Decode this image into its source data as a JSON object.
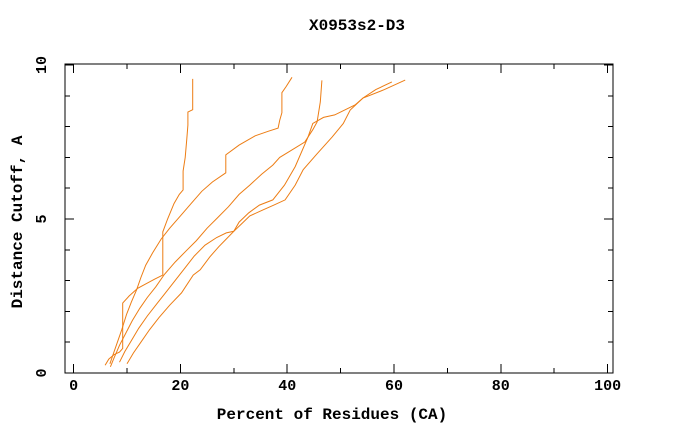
{
  "figure": {
    "background": "#ffffff",
    "axis_color": "#000000"
  },
  "chart_data": {
    "type": "line",
    "title": "X0953s2-D3",
    "xlabel": "Percent of Residues (CA)",
    "ylabel": "Distance Cutoff, A",
    "xlim": [
      0,
      100
    ],
    "ylim": [
      0,
      10
    ],
    "grid": false,
    "legend_position": "none",
    "line_color": "#ED7D14",
    "x_major_ticks": [
      0,
      20,
      40,
      60,
      80,
      100
    ],
    "x_minor_ticks": [
      10,
      30,
      50,
      70,
      90
    ],
    "y_major_ticks": [
      0,
      5,
      10
    ],
    "y_minor_ticks": [
      1,
      2,
      3,
      4,
      6,
      7,
      8,
      9
    ],
    "x_tick_labels": [
      "0",
      "20",
      "40",
      "60",
      "80",
      "100"
    ],
    "y_tick_labels": [
      "0",
      "5",
      "10"
    ],
    "series": [
      {
        "id": "curve-1",
        "points": [
          [
            5.9,
            0.25
          ],
          [
            6.6,
            0.45
          ],
          [
            7.6,
            0.6
          ],
          [
            8.6,
            0.68
          ],
          [
            9.2,
            0.8
          ],
          [
            9.2,
            2.27
          ],
          [
            10.4,
            2.5
          ],
          [
            12.0,
            2.75
          ],
          [
            13.6,
            2.9
          ],
          [
            15.2,
            3.05
          ],
          [
            16.7,
            3.18
          ],
          [
            16.7,
            4.58
          ],
          [
            17.6,
            5.0
          ],
          [
            18.8,
            5.5
          ],
          [
            19.8,
            5.8
          ],
          [
            20.5,
            5.94
          ],
          [
            20.5,
            6.56
          ],
          [
            20.9,
            7.0
          ],
          [
            21.2,
            7.6
          ],
          [
            21.4,
            8.05
          ],
          [
            21.4,
            8.47
          ],
          [
            22.3,
            8.55
          ],
          [
            22.3,
            9.55
          ]
        ]
      },
      {
        "id": "curve-2",
        "points": [
          [
            6.8,
            0.3
          ],
          [
            7.4,
            0.6
          ],
          [
            8.2,
            1.0
          ],
          [
            9.0,
            1.4
          ],
          [
            9.9,
            1.9
          ],
          [
            10.8,
            2.3
          ],
          [
            11.8,
            2.7
          ],
          [
            12.6,
            3.1
          ],
          [
            13.5,
            3.5
          ],
          [
            14.8,
            3.9
          ],
          [
            16.4,
            4.35
          ],
          [
            18.0,
            4.7
          ],
          [
            20.0,
            5.1
          ],
          [
            22.0,
            5.5
          ],
          [
            24.0,
            5.9
          ],
          [
            26.0,
            6.2
          ],
          [
            28.5,
            6.5
          ],
          [
            28.5,
            7.08
          ],
          [
            31.0,
            7.4
          ],
          [
            34.0,
            7.7
          ],
          [
            36.5,
            7.85
          ],
          [
            38.3,
            7.95
          ],
          [
            38.6,
            8.2
          ],
          [
            39.0,
            8.45
          ],
          [
            39.0,
            9.1
          ],
          [
            39.8,
            9.3
          ],
          [
            40.9,
            9.6
          ]
        ]
      },
      {
        "id": "curve-3",
        "points": [
          [
            6.9,
            0.2
          ],
          [
            7.6,
            0.5
          ],
          [
            8.6,
            0.9
          ],
          [
            9.8,
            1.3
          ],
          [
            11.0,
            1.7
          ],
          [
            12.4,
            2.1
          ],
          [
            13.8,
            2.45
          ],
          [
            15.4,
            2.8
          ],
          [
            17.0,
            3.2
          ],
          [
            19.0,
            3.6
          ],
          [
            21.0,
            3.95
          ],
          [
            23.0,
            4.3
          ],
          [
            25.0,
            4.7
          ],
          [
            27.0,
            5.05
          ],
          [
            29.0,
            5.4
          ],
          [
            31.0,
            5.8
          ],
          [
            33.0,
            6.1
          ],
          [
            35.2,
            6.45
          ],
          [
            37.3,
            6.75
          ],
          [
            38.6,
            7.0
          ],
          [
            40.5,
            7.2
          ],
          [
            43.3,
            7.5
          ],
          [
            44.8,
            7.9
          ],
          [
            45.6,
            8.15
          ],
          [
            46.2,
            8.8
          ],
          [
            46.5,
            9.5
          ]
        ]
      },
      {
        "id": "curve-4",
        "points": [
          [
            8.6,
            0.35
          ],
          [
            9.6,
            0.7
          ],
          [
            10.8,
            1.05
          ],
          [
            12.2,
            1.45
          ],
          [
            13.8,
            1.85
          ],
          [
            15.6,
            2.25
          ],
          [
            17.2,
            2.6
          ],
          [
            19.0,
            3.0
          ],
          [
            20.8,
            3.4
          ],
          [
            22.6,
            3.8
          ],
          [
            24.6,
            4.15
          ],
          [
            26.8,
            4.4
          ],
          [
            28.6,
            4.55
          ],
          [
            30.0,
            4.6
          ],
          [
            31.5,
            4.85
          ],
          [
            33.0,
            5.1
          ],
          [
            35.5,
            5.3
          ],
          [
            37.5,
            5.45
          ],
          [
            39.6,
            5.62
          ],
          [
            41.5,
            6.1
          ],
          [
            43.0,
            6.6
          ],
          [
            45.5,
            7.1
          ],
          [
            48.4,
            7.66
          ],
          [
            50.5,
            8.1
          ],
          [
            51.8,
            8.54
          ],
          [
            54.2,
            8.93
          ],
          [
            56.6,
            9.2
          ],
          [
            59.6,
            9.45
          ]
        ]
      },
      {
        "id": "curve-5",
        "points": [
          [
            10.0,
            0.3
          ],
          [
            11.2,
            0.65
          ],
          [
            12.6,
            1.0
          ],
          [
            14.2,
            1.4
          ],
          [
            16.0,
            1.8
          ],
          [
            18.0,
            2.2
          ],
          [
            20.2,
            2.6
          ],
          [
            22.4,
            3.18
          ],
          [
            23.7,
            3.35
          ],
          [
            25.5,
            3.77
          ],
          [
            27.2,
            4.1
          ],
          [
            28.6,
            4.35
          ],
          [
            30.0,
            4.6
          ],
          [
            31.0,
            4.9
          ],
          [
            32.8,
            5.2
          ],
          [
            34.8,
            5.45
          ],
          [
            37.3,
            5.62
          ],
          [
            39.5,
            6.1
          ],
          [
            41.5,
            6.7
          ],
          [
            43.9,
            7.66
          ],
          [
            44.8,
            8.1
          ],
          [
            46.8,
            8.3
          ],
          [
            48.9,
            8.38
          ],
          [
            52.7,
            8.7
          ],
          [
            54.2,
            8.93
          ],
          [
            58.2,
            9.2
          ],
          [
            62.1,
            9.51
          ]
        ]
      }
    ]
  }
}
